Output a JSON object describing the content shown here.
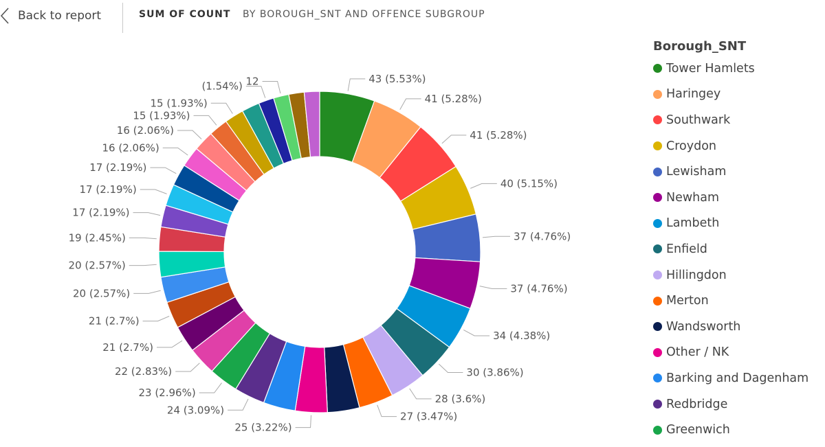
{
  "header": {
    "back_label": "Back to report",
    "measure": "SUM OF COUNT",
    "dimension": "BY BOROUGH_SNT AND OFFENCE SUBGROUP"
  },
  "legend": {
    "title": "Borough_SNT",
    "items": [
      {
        "label": "Tower Hamlets",
        "color": "#228b22"
      },
      {
        "label": "Haringey",
        "color": "#ffa05a"
      },
      {
        "label": "Southwark",
        "color": "#ff4444"
      },
      {
        "label": "Croydon",
        "color": "#dcb400"
      },
      {
        "label": "Lewisham",
        "color": "#4466c4"
      },
      {
        "label": "Newham",
        "color": "#9c0090"
      },
      {
        "label": "Lambeth",
        "color": "#0094d8"
      },
      {
        "label": "Enfield",
        "color": "#1a6e78"
      },
      {
        "label": "Hillingdon",
        "color": "#c0aaf2"
      },
      {
        "label": "Merton",
        "color": "#ff6600"
      },
      {
        "label": "Wandsworth",
        "color": "#0a1e50"
      },
      {
        "label": "Other / NK",
        "color": "#e8008c"
      },
      {
        "label": "Barking and Dagenham",
        "color": "#2288f0"
      },
      {
        "label": "Redbridge",
        "color": "#5a2e8c"
      },
      {
        "label": "Greenwich",
        "color": "#19a64a"
      }
    ]
  },
  "chart_data": {
    "type": "pie",
    "variant": "donut",
    "title": "Sum of Count by Borough_SNT and Offence Subgroup",
    "legend_title": "Borough_SNT",
    "legend_position": "right",
    "slices": [
      {
        "value": 43,
        "label": "43 (5.53%)",
        "color": "#228b22"
      },
      {
        "value": 41,
        "label": "41 (5.28%)",
        "color": "#ffa05a"
      },
      {
        "value": 41,
        "label": "41 (5.28%)",
        "color": "#ff4444"
      },
      {
        "value": 40,
        "label": "40 (5.15%)",
        "color": "#dcb400"
      },
      {
        "value": 37,
        "label": "37 (4.76%)",
        "color": "#4466c4"
      },
      {
        "value": 37,
        "label": "37 (4.76%)",
        "color": "#9c0090"
      },
      {
        "value": 34,
        "label": "34 (4.38%)",
        "color": "#0094d8"
      },
      {
        "value": 30,
        "label": "30 (3.86%)",
        "color": "#1a6e78"
      },
      {
        "value": 28,
        "label": "28 (3.6%)",
        "color": "#c0aaf2"
      },
      {
        "value": 27,
        "label": "27 (3.47%)",
        "color": "#ff6600"
      },
      {
        "value": 25,
        "label": "",
        "color": "#0a1e50"
      },
      {
        "value": 25,
        "label": "25 (3.22%)",
        "color": "#e8008c"
      },
      {
        "value": 25,
        "label": "",
        "color": "#2288f0"
      },
      {
        "value": 24,
        "label": "24 (3.09%)",
        "color": "#5a2e8c"
      },
      {
        "value": 23,
        "label": "23 (2.96%)",
        "color": "#19a64a"
      },
      {
        "value": 22,
        "label": "22 (2.83%)",
        "color": "#e040a8"
      },
      {
        "value": 21,
        "label": "21 (2.7%)",
        "color": "#6a006e"
      },
      {
        "value": 21,
        "label": "21 (2.7%)",
        "color": "#c4480e"
      },
      {
        "value": 20,
        "label": "20 (2.57%)",
        "color": "#3a8ef0"
      },
      {
        "value": 20,
        "label": "20 (2.57%)",
        "color": "#00d2b4"
      },
      {
        "value": 19,
        "label": "19 (2.45%)",
        "color": "#d83c4c"
      },
      {
        "value": 17,
        "label": "17 (2.19%)",
        "color": "#7848c4"
      },
      {
        "value": 17,
        "label": "17 (2.19%)",
        "color": "#1ec0ee"
      },
      {
        "value": 17,
        "label": "17 (2.19%)",
        "color": "#004c98"
      },
      {
        "value": 16,
        "label": "16 (2.06%)",
        "color": "#f058cc"
      },
      {
        "value": 16,
        "label": "16 (2.06%)",
        "color": "#ff7e7e"
      },
      {
        "value": 15,
        "label": "15 (1.93%)",
        "color": "#e86a30"
      },
      {
        "value": 15,
        "label": "15 (1.93%)",
        "color": "#c8a000"
      },
      {
        "value": 14,
        "label": "",
        "color": "#1e9a8c"
      },
      {
        "value": 12,
        "label": "(1.54%)",
        "color": "#1e22a0"
      },
      {
        "value": 12,
        "label": "12",
        "color": "#5ad46e"
      },
      {
        "value": 12,
        "label": "",
        "color": "#9c6a0a"
      },
      {
        "value": 12,
        "label": "",
        "color": "#c060d0"
      }
    ]
  }
}
